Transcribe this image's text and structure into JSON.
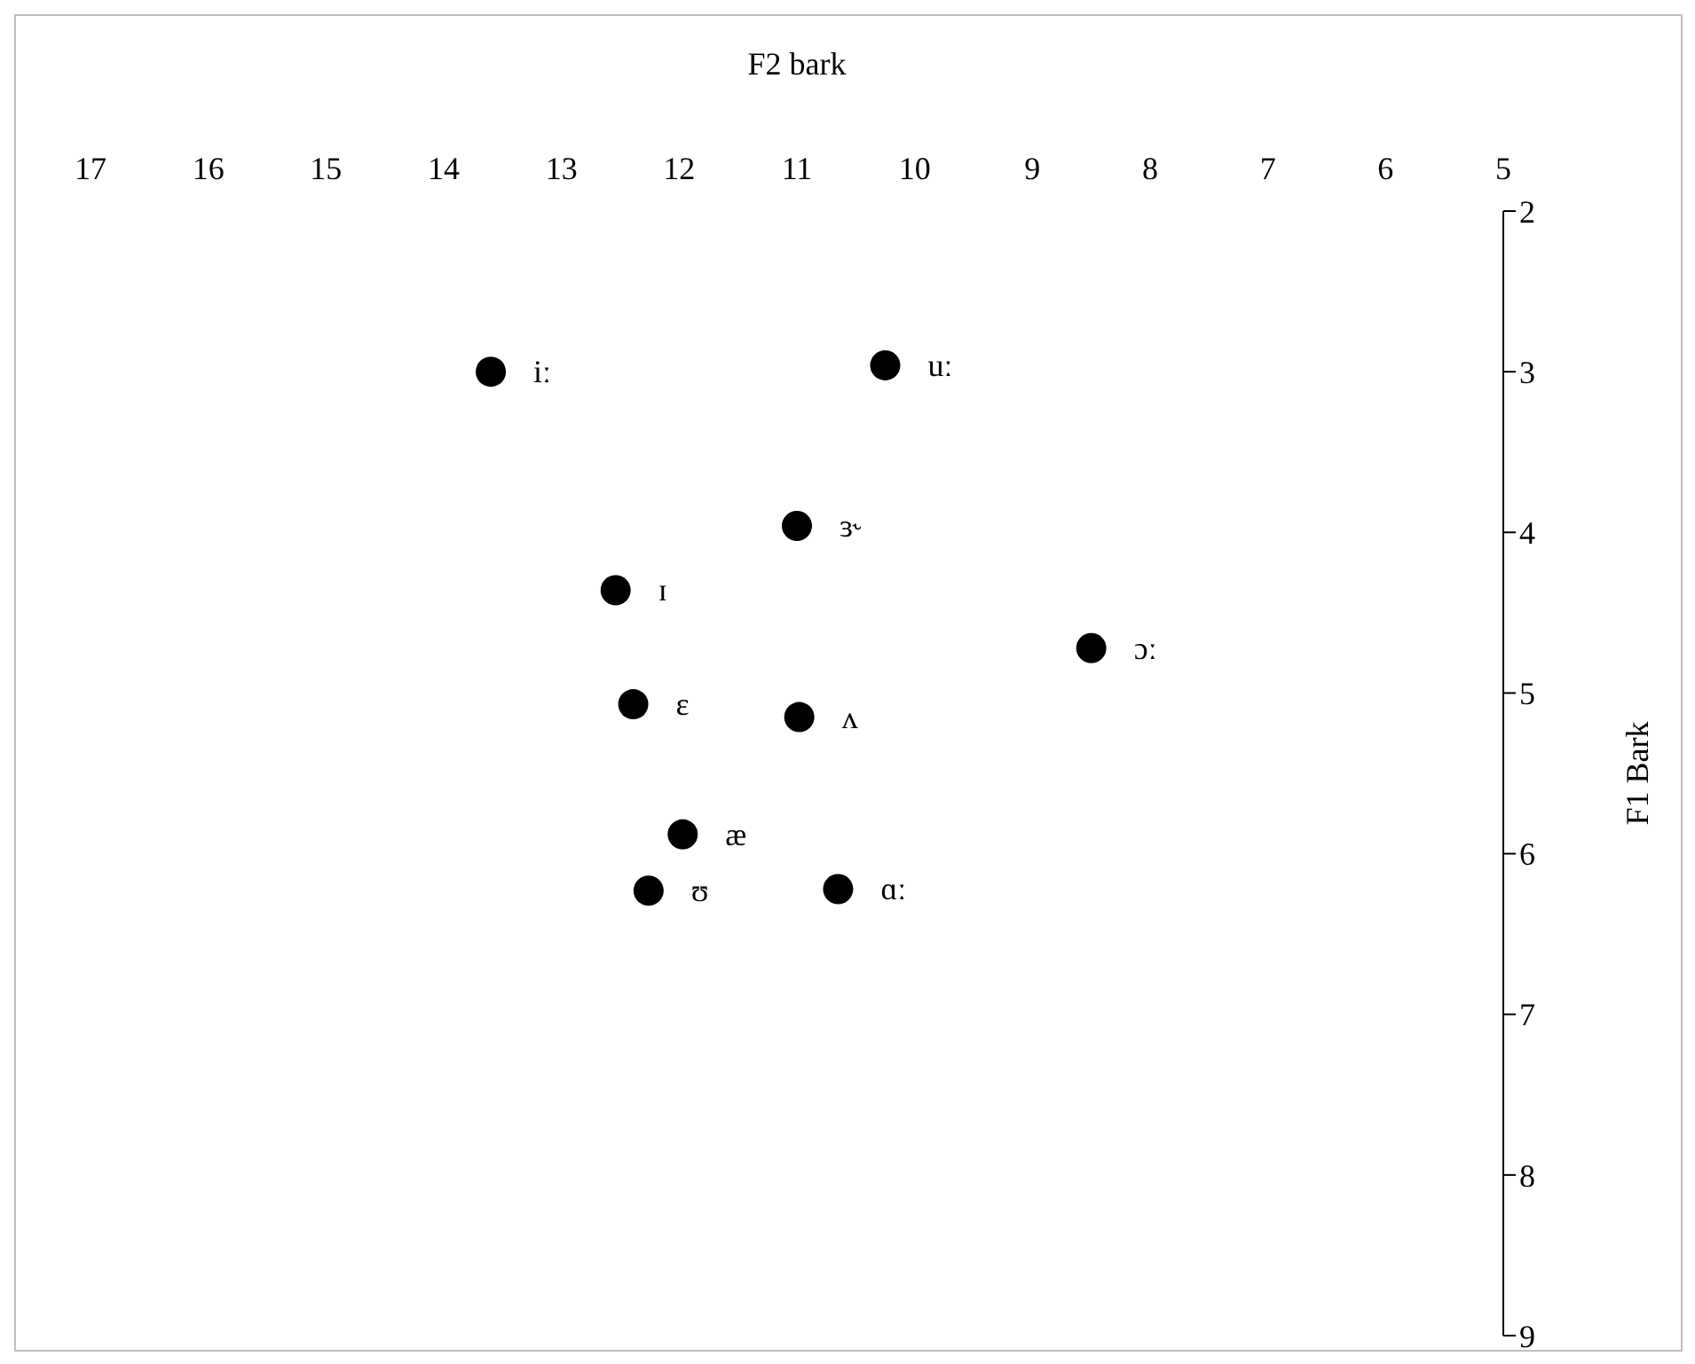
{
  "chart_data": {
    "type": "scatter",
    "xlabel": "F2 bark",
    "ylabel": "F1 Bark",
    "x": [
      13.6,
      10.25,
      11.0,
      12.54,
      8.5,
      12.39,
      10.98,
      11.97,
      12.26,
      10.65
    ],
    "values": [
      3.0,
      2.96,
      3.96,
      4.36,
      4.72,
      5.07,
      5.15,
      5.88,
      6.23,
      6.22
    ],
    "color": "#000000",
    "marker": "circle",
    "xlim": [
      17,
      5
    ],
    "xticks": [
      17,
      16,
      15,
      14,
      13,
      12,
      11,
      10,
      9,
      8,
      7,
      6,
      5
    ],
    "ylim": [
      9,
      2
    ],
    "yticks": [
      2,
      3,
      4,
      5,
      6,
      7,
      8,
      9
    ],
    "grid": false,
    "legend": false,
    "annotations": [
      {
        "text": "iː",
        "x": 13.6,
        "y": 3.0
      },
      {
        "text": "uː",
        "x": 10.25,
        "y": 2.96
      },
      {
        "text": "ɜ˞",
        "x": 11.0,
        "y": 3.96
      },
      {
        "text": "ɪ",
        "x": 12.54,
        "y": 4.36
      },
      {
        "text": "ɔː",
        "x": 8.5,
        "y": 4.72
      },
      {
        "text": "ɛ",
        "x": 12.39,
        "y": 5.07
      },
      {
        "text": "ʌ",
        "x": 10.98,
        "y": 5.15
      },
      {
        "text": "æ",
        "x": 11.97,
        "y": 5.88
      },
      {
        "text": "ʊ",
        "x": 12.26,
        "y": 6.23
      },
      {
        "text": "ɑː",
        "x": 10.65,
        "y": 6.22
      }
    ]
  }
}
